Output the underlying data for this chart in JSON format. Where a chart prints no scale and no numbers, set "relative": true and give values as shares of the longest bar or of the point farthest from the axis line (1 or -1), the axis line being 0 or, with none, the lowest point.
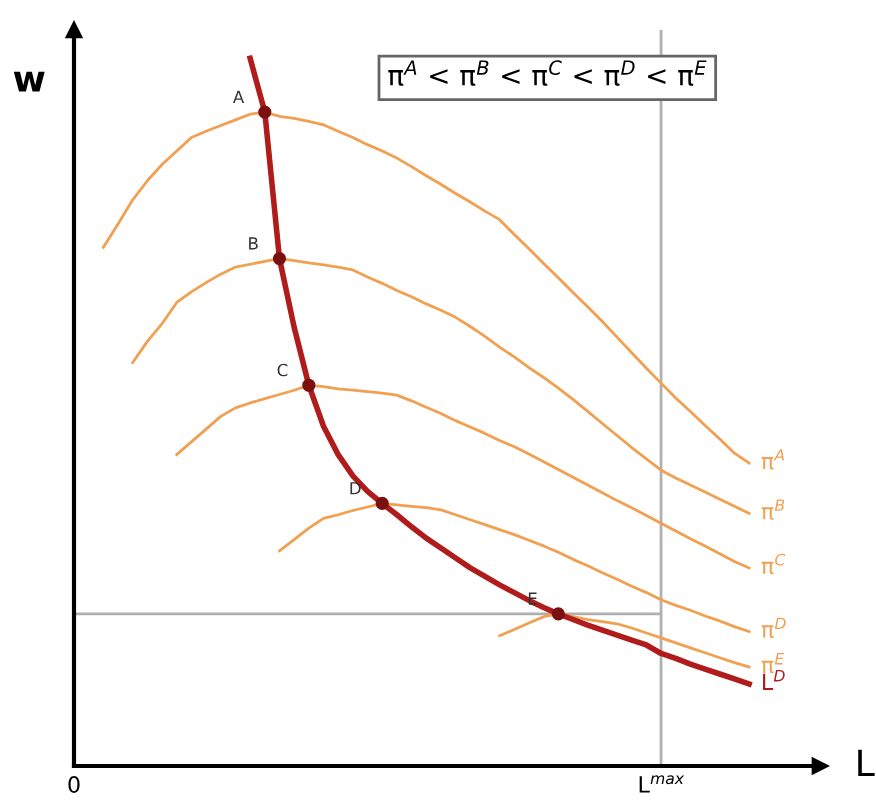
{
  "chart_data": {
    "type": "line",
    "relative": true,
    "xlabel": "L",
    "ylabel": "w",
    "legend": false,
    "grid": false,
    "marker": "none",
    "categories": [
      "0",
      null,
      null,
      null,
      null,
      null,
      null,
      null,
      null,
      null,
      null,
      null,
      null,
      null,
      null,
      null,
      null,
      null,
      null,
      null,
      null,
      null,
      null,
      null,
      null,
      null,
      null,
      null,
      null,
      null,
      null,
      null,
      null,
      null,
      null,
      null,
      null,
      null,
      null,
      null,
      "L$^{max}$",
      null,
      null,
      null,
      null,
      null,
      null
    ],
    "series": [
      {
        "name": "π$^{A}$",
        "color": "#f0a050",
        "values": [
          null,
          null,
          0.733,
          0.766,
          0.8,
          0.827,
          0.85,
          0.869,
          0.888,
          0.897,
          0.905,
          0.913,
          0.921,
          0.924,
          0.918,
          0.915,
          0.911,
          0.906,
          0.897,
          0.888,
          0.878,
          0.869,
          0.859,
          0.847,
          0.834,
          0.822,
          0.809,
          0.797,
          0.784,
          0.772,
          0.751,
          0.731,
          0.71,
          0.69,
          0.669,
          0.649,
          0.628,
          0.606,
          0.584,
          0.562,
          0.541,
          0.52,
          0.501,
          0.481,
          0.462,
          0.442,
          0.428
        ]
      },
      {
        "name": "π$^{B}$",
        "color": "#f0a050",
        "values": [
          null,
          null,
          null,
          null,
          0.57,
          0.6,
          0.625,
          0.655,
          0.67,
          0.683,
          0.695,
          0.705,
          0.709,
          0.713,
          0.717,
          0.714,
          0.711,
          0.708,
          0.705,
          0.701,
          0.691,
          0.682,
          0.672,
          0.663,
          0.653,
          0.644,
          0.634,
          0.621,
          0.607,
          0.592,
          0.578,
          0.563,
          0.549,
          0.534,
          0.518,
          0.501,
          0.484,
          0.467,
          0.45,
          0.434,
          0.418,
          0.407,
          0.397,
          0.387,
          0.377,
          0.367,
          0.357
        ]
      },
      {
        "name": "π$^{C}$",
        "color": "#f0a050",
        "values": [
          null,
          null,
          null,
          null,
          null,
          null,
          null,
          0.44,
          0.458,
          0.476,
          0.494,
          0.506,
          0.513,
          0.519,
          0.525,
          0.531,
          0.538,
          0.536,
          0.533,
          0.531,
          0.529,
          0.527,
          0.524,
          0.516,
          0.507,
          0.498,
          0.488,
          0.479,
          0.47,
          0.46,
          0.451,
          0.441,
          0.43,
          0.419,
          0.408,
          0.397,
          0.386,
          0.375,
          0.365,
          0.354,
          0.343,
          0.332,
          0.321,
          0.311,
          0.3,
          0.289,
          0.28
        ]
      },
      {
        "name": "π$^{D}$",
        "color": "#f0a050",
        "values": [
          null,
          null,
          null,
          null,
          null,
          null,
          null,
          null,
          null,
          null,
          null,
          null,
          null,
          null,
          0.304,
          0.32,
          0.336,
          0.35,
          0.355,
          0.361,
          0.366,
          0.371,
          0.369,
          0.367,
          0.365,
          0.362,
          0.355,
          0.348,
          0.341,
          0.334,
          0.327,
          0.319,
          0.311,
          0.302,
          0.292,
          0.283,
          0.273,
          0.264,
          0.254,
          0.245,
          0.235,
          0.227,
          0.22,
          0.212,
          0.205,
          0.197,
          0.19
        ]
      },
      {
        "name": "π$^{E}$",
        "color": "#f0a050",
        "values": [
          null,
          null,
          null,
          null,
          null,
          null,
          null,
          null,
          null,
          null,
          null,
          null,
          null,
          null,
          null,
          null,
          null,
          null,
          null,
          null,
          null,
          null,
          null,
          null,
          null,
          null,
          null,
          null,
          null,
          0.184,
          0.193,
          0.202,
          0.211,
          0.215,
          0.211,
          0.207,
          0.204,
          0.201,
          0.195,
          0.188,
          0.181,
          0.174,
          0.167,
          0.16,
          0.153,
          0.146,
          0.14
        ]
      },
      {
        "name": "L$^{D}$",
        "color": "#b01c1c",
        "values": [
          null,
          null,
          null,
          null,
          null,
          null,
          null,
          null,
          null,
          null,
          null,
          null,
          1.0,
          0.924,
          0.717,
          0.62,
          0.538,
          0.48,
          0.44,
          0.41,
          0.388,
          0.371,
          0.355,
          0.338,
          0.322,
          0.308,
          0.294,
          0.28,
          0.268,
          0.256,
          0.245,
          0.234,
          0.224,
          0.215,
          0.207,
          0.199,
          0.192,
          0.185,
          0.178,
          0.171,
          0.159,
          0.152,
          0.144,
          0.137,
          0.13,
          0.123,
          0.116
        ]
      },
      {
        "type": "scatter",
        "marker": "circle",
        "color": "#7a1010",
        "values": [
          null,
          null,
          null,
          null,
          null,
          null,
          null,
          null,
          null,
          null,
          null,
          null,
          null,
          0.924,
          0.717,
          null,
          0.538,
          null,
          null,
          null,
          null,
          0.371,
          null,
          null,
          null,
          null,
          null,
          null,
          null,
          null,
          null,
          null,
          null,
          0.215,
          null,
          null,
          null,
          null,
          null,
          null,
          null,
          null,
          null,
          null,
          null,
          null,
          null
        ]
      }
    ],
    "ref_lines": [
      {
        "axis": "x",
        "value": "L$^{max}$",
        "color": "#b0b0b0"
      },
      {
        "axis": "y",
        "value": 0.215,
        "color": "#b0b0b0"
      }
    ],
    "annotations": [
      "π$^{A}$ < π$^{B}$ < π$^{C}$ < π$^{D}$ < π$^{E}$",
      "A",
      "B",
      "C",
      "D",
      "E"
    ]
  }
}
